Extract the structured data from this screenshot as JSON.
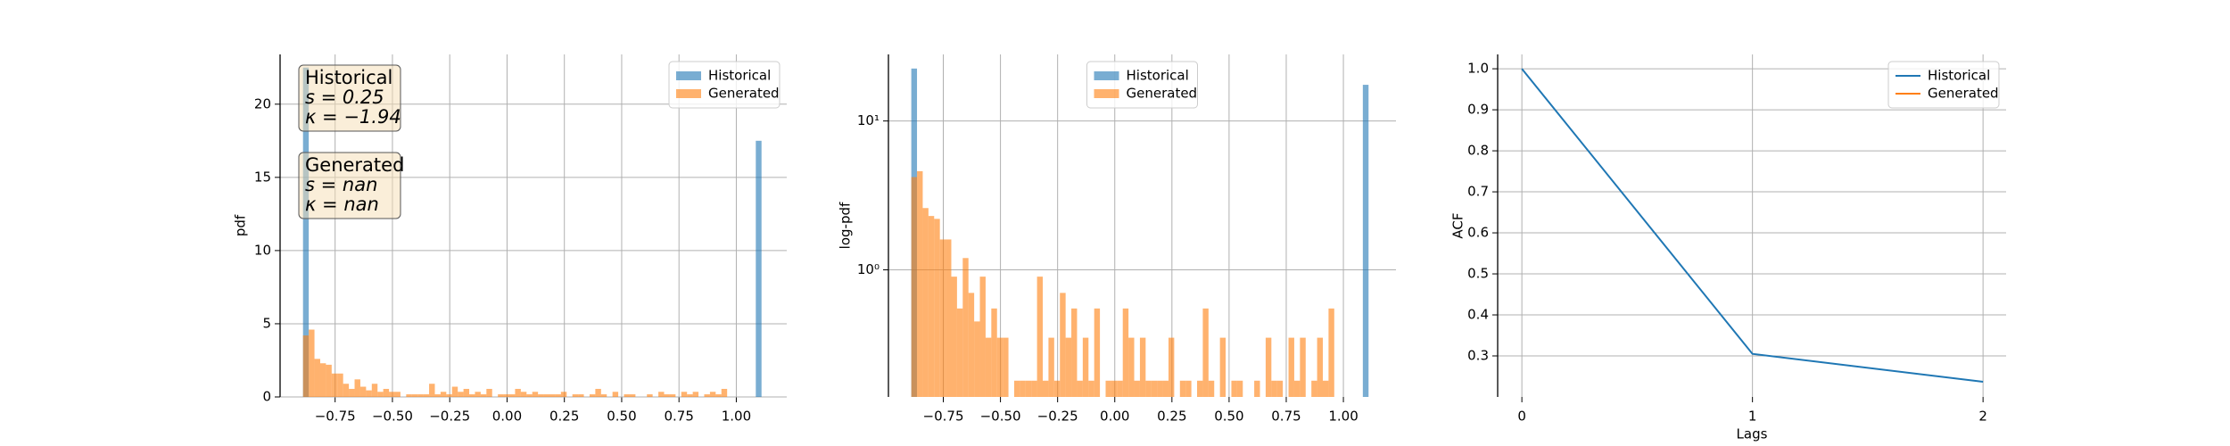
{
  "chart_data": [
    {
      "type": "histogram",
      "ylabel": "pdf",
      "xlim": [
        -0.99,
        1.22
      ],
      "ylim": [
        0,
        23.4
      ],
      "xticks": [
        {
          "value": -0.75,
          "label": "−0.75"
        },
        {
          "value": -0.5,
          "label": "−0.50"
        },
        {
          "value": -0.25,
          "label": "−0.25"
        },
        {
          "value": 0,
          "label": "0.00"
        },
        0.25,
        {
          "value": 0.5,
          "label": "0.50"
        },
        0.75,
        {
          "value": 1,
          "label": "1.00"
        }
      ],
      "yticks": [
        0,
        5,
        10,
        15,
        20
      ],
      "grid": true,
      "legend": "upper right",
      "series": [
        {
          "name": "Historical",
          "color": "#1f77b4",
          "bins": [
            -0.89,
            -0.865,
            1.085,
            1.11
          ],
          "values": [
            22.5,
            0,
            17.5
          ]
        },
        {
          "name": "Generated",
          "color": "#ff7f0e",
          "bins": [
            -0.89,
            -0.865,
            -0.84,
            -0.815,
            -0.79,
            -0.765,
            -0.74,
            -0.715,
            -0.69,
            -0.665,
            -0.64,
            -0.615,
            -0.59,
            -0.565,
            -0.54,
            -0.515,
            -0.49,
            -0.465,
            -0.44,
            -0.415,
            -0.39,
            -0.365,
            -0.34,
            -0.315,
            -0.29,
            -0.265,
            -0.24,
            -0.215,
            -0.19,
            -0.165,
            -0.14,
            -0.115,
            -0.09,
            -0.065,
            -0.04,
            -0.015,
            0.01,
            0.035,
            0.06,
            0.085,
            0.11,
            0.135,
            0.16,
            0.185,
            0.21,
            0.235,
            0.26,
            0.285,
            0.31,
            0.335,
            0.36,
            0.385,
            0.41,
            0.435,
            0.46,
            0.485,
            0.51,
            0.535,
            0.56,
            0.585,
            0.61,
            0.635,
            0.66,
            0.685,
            0.71,
            0.735,
            0.76,
            0.785,
            0.81,
            0.835,
            0.86,
            0.885,
            0.91,
            0.935,
            0.96,
            0.985,
            1.01,
            1.035,
            1.06,
            1.085,
            1.11
          ],
          "values": [
            4.2,
            4.6,
            2.6,
            2.3,
            2.2,
            1.6,
            1.6,
            0.9,
            0.55,
            1.2,
            0.7,
            0.45,
            0.9,
            0.35,
            0.55,
            0.35,
            0.35,
            0,
            0.18,
            0.18,
            0.18,
            0.18,
            0.9,
            0.18,
            0.35,
            0.18,
            0.7,
            0.35,
            0.55,
            0.18,
            0.35,
            0.18,
            0.55,
            0,
            0.18,
            0.18,
            0.18,
            0.55,
            0.35,
            0.18,
            0.35,
            0.18,
            0.18,
            0.18,
            0.18,
            0.35,
            0,
            0.18,
            0.18,
            0,
            0.18,
            0.55,
            0.18,
            0,
            0.35,
            0,
            0.18,
            0.18,
            0,
            0,
            0.18,
            0,
            0.35,
            0.18,
            0.18,
            0,
            0.35,
            0.18,
            0.35,
            0,
            0.18,
            0.35,
            0.18,
            0.55,
            0,
            0,
            0,
            0,
            0,
            0
          ]
        }
      ],
      "annotations": [
        {
          "lines": [
            "Historical",
            "s = 0.25",
            "κ = −1.94"
          ]
        },
        {
          "lines": [
            "Generated",
            "s = nan",
            "κ = nan"
          ]
        }
      ]
    },
    {
      "type": "histogram",
      "ylabel": "log-pdf",
      "ylog": true,
      "xlim": [
        -0.99,
        1.23
      ],
      "ylim": [
        0.14,
        28
      ],
      "xticks": [
        {
          "value": -0.75,
          "label": "−0.75"
        },
        {
          "value": -0.5,
          "label": "−0.50"
        },
        {
          "value": -0.25,
          "label": "−0.25"
        },
        {
          "value": 0,
          "label": "0.00"
        },
        0.25,
        {
          "value": 0.5,
          "label": "0.50"
        },
        0.75,
        {
          "value": 1,
          "label": "1.00"
        }
      ],
      "yticks": [
        {
          "value": 1,
          "label": "10⁰"
        },
        {
          "value": 10,
          "label": "10¹"
        }
      ],
      "grid": true,
      "legend": "upper center",
      "series": [
        {
          "name": "Historical",
          "color": "#1f77b4",
          "bins": [
            -0.89,
            -0.865,
            1.085,
            1.11
          ],
          "values": [
            22.5,
            0,
            17.5
          ]
        },
        {
          "name": "Generated",
          "color": "#ff7f0e",
          "bins": [
            -0.89,
            -0.865,
            -0.84,
            -0.815,
            -0.79,
            -0.765,
            -0.74,
            -0.715,
            -0.69,
            -0.665,
            -0.64,
            -0.615,
            -0.59,
            -0.565,
            -0.54,
            -0.515,
            -0.49,
            -0.465,
            -0.44,
            -0.415,
            -0.39,
            -0.365,
            -0.34,
            -0.315,
            -0.29,
            -0.265,
            -0.24,
            -0.215,
            -0.19,
            -0.165,
            -0.14,
            -0.115,
            -0.09,
            -0.065,
            -0.04,
            -0.015,
            0.01,
            0.035,
            0.06,
            0.085,
            0.11,
            0.135,
            0.16,
            0.185,
            0.21,
            0.235,
            0.26,
            0.285,
            0.31,
            0.335,
            0.36,
            0.385,
            0.41,
            0.435,
            0.46,
            0.485,
            0.51,
            0.535,
            0.56,
            0.585,
            0.61,
            0.635,
            0.66,
            0.685,
            0.71,
            0.735,
            0.76,
            0.785,
            0.81,
            0.835,
            0.86,
            0.885,
            0.91,
            0.935,
            0.96,
            0.985,
            1.01,
            1.035,
            1.06,
            1.085,
            1.11
          ],
          "values": [
            4.2,
            4.6,
            2.6,
            2.3,
            2.2,
            1.6,
            1.6,
            0.9,
            0.55,
            1.2,
            0.7,
            0.45,
            0.9,
            0.35,
            0.55,
            0.35,
            0.35,
            0,
            0.18,
            0.18,
            0.18,
            0.18,
            0.9,
            0.18,
            0.35,
            0.18,
            0.7,
            0.35,
            0.55,
            0.18,
            0.35,
            0.18,
            0.55,
            0,
            0.18,
            0.18,
            0.18,
            0.55,
            0.35,
            0.18,
            0.35,
            0.18,
            0.18,
            0.18,
            0.18,
            0.35,
            0,
            0.18,
            0.18,
            0,
            0.18,
            0.55,
            0.18,
            0,
            0.35,
            0,
            0.18,
            0.18,
            0,
            0,
            0.18,
            0,
            0.35,
            0.18,
            0.18,
            0,
            0.35,
            0.18,
            0.35,
            0,
            0.18,
            0.35,
            0.18,
            0.55,
            0,
            0,
            0,
            0,
            0,
            0
          ]
        }
      ]
    },
    {
      "type": "line",
      "xlabel": "Lags",
      "ylabel": "ACF",
      "xlim": [
        -0.105,
        2.1
      ],
      "ylim": [
        0.2,
        1.035
      ],
      "xticks": [
        0,
        1,
        2
      ],
      "yticks": [
        0.3,
        0.4,
        0.5,
        0.6,
        0.7,
        0.8,
        0.9,
        {
          "value": 1,
          "label": "1.0"
        }
      ],
      "grid": true,
      "legend": "upper right",
      "x": [
        0,
        1,
        2
      ],
      "series": [
        {
          "name": "Historical",
          "color": "#1f77b4",
          "values": [
            1.0,
            0.305,
            0.237
          ]
        },
        {
          "name": "Generated",
          "color": "#ff7f0e",
          "values": [
            null,
            null,
            null
          ]
        }
      ]
    }
  ]
}
